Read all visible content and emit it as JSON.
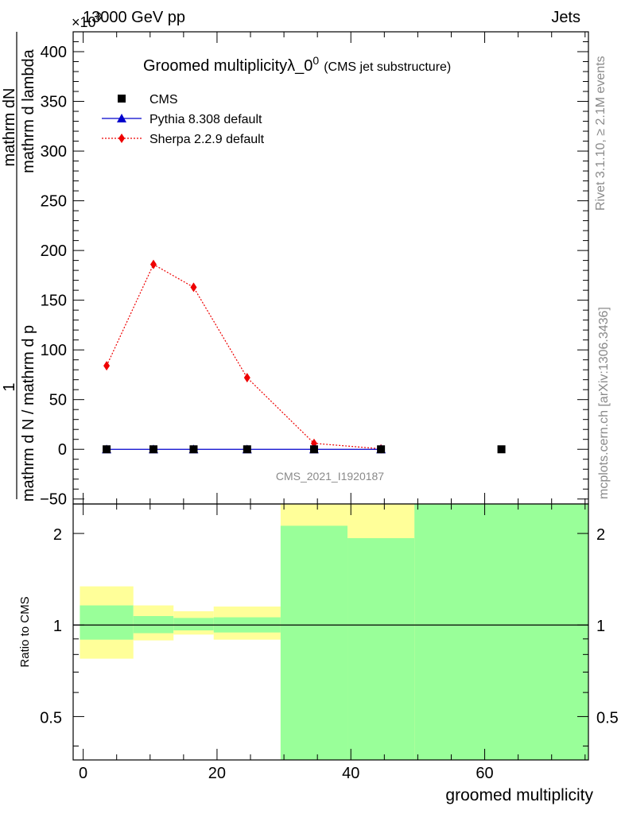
{
  "header": {
    "beam": "13000 GeV pp",
    "process": "Jets",
    "exponent": "×10",
    "exponent_power": "3"
  },
  "side_labels": {
    "rivet": "Rivet 3.1.10, ≥ 2.1M events",
    "mcplots": "mcplots.cern.ch [arXiv:1306.3436]"
  },
  "watermark": "CMS_2021_I1920187",
  "chart_data": [
    {
      "type": "line",
      "title": "Groomed multiplicityλ_0",
      "title_sup": "0",
      "subtitle": "(CMS jet substructure)",
      "xlabel": "groomed multiplicity",
      "ylabel_num": "1",
      "ylabel_num2": "mathrm d N / mathrm d p",
      "ylabel_den": "mathrm d N / mathrm d p",
      "ylabel_lines": [
        "mathrm dN",
        "mathrm d p",
        "mathrm d lambda",
        "mathrm d N / mathrm d p",
        "mathrm d N"
      ],
      "ylim": [
        -55,
        420
      ],
      "xlim": [
        -1.5,
        75.5
      ],
      "grid": false,
      "legend_position": "top-left",
      "y_ticks": [
        -50,
        0,
        50,
        100,
        150,
        200,
        250,
        300,
        350,
        400
      ],
      "y_tick_labels": [
        "−50",
        "0",
        "50",
        "100",
        "150",
        "200",
        "250",
        "300",
        "350",
        "400"
      ],
      "series": [
        {
          "name": "CMS",
          "color": "#000000",
          "marker": "square",
          "x": [
            3.5,
            10.5,
            16.5,
            24.5,
            34.5,
            44.5,
            62.5
          ],
          "y": [
            0,
            0,
            0,
            0,
            0,
            0,
            0
          ]
        },
        {
          "name": "Pythia 8.308 default",
          "color": "#0000cc",
          "marker": "triangle",
          "line": "solid",
          "x": [
            3.5,
            10.5,
            16.5,
            24.5,
            34.5,
            44.5
          ],
          "y": [
            0,
            0,
            0,
            0,
            0,
            0
          ]
        },
        {
          "name": "Sherpa 2.2.9 default",
          "color": "#ee0000",
          "marker": "diamond",
          "line": "dotted",
          "x": [
            3.5,
            10.5,
            16.5,
            24.5,
            34.5,
            44.5
          ],
          "y": [
            84,
            186,
            163,
            72,
            6,
            0.5
          ]
        }
      ]
    },
    {
      "type": "area",
      "ylabel": "Ratio to CMS",
      "xlabel": "groomed multiplicity",
      "scale": "log",
      "ylim": [
        0.36,
        2.5
      ],
      "xlim": [
        -1.5,
        75.5
      ],
      "x_ticks": [
        0,
        20,
        40,
        60
      ],
      "x_tick_labels": [
        "0",
        "20",
        "40",
        "60"
      ],
      "y_ticks": [
        0.5,
        1,
        2
      ],
      "y_tick_labels": [
        "0.5",
        "1",
        "2"
      ],
      "reference_line": 1,
      "colors": {
        "inner": "#99ff99",
        "outer": "#ffff99"
      },
      "bands": [
        {
          "x_low": -0.5,
          "x_high": 7.5,
          "inner": [
            0.895,
            1.16
          ],
          "outer": [
            0.775,
            1.34
          ]
        },
        {
          "x_low": 7.5,
          "x_high": 13.5,
          "inner": [
            0.94,
            1.07
          ],
          "outer": [
            0.89,
            1.16
          ]
        },
        {
          "x_low": 13.5,
          "x_high": 19.5,
          "inner": [
            0.96,
            1.055
          ],
          "outer": [
            0.93,
            1.11
          ]
        },
        {
          "x_low": 19.5,
          "x_high": 29.5,
          "inner": [
            0.945,
            1.06
          ],
          "outer": [
            0.895,
            1.15
          ]
        },
        {
          "x_low": 29.5,
          "x_high": 39.5,
          "inner": [
            0.3,
            2.12
          ],
          "outer": [
            0.3,
            2.6
          ]
        },
        {
          "x_low": 39.5,
          "x_high": 49.5,
          "inner": [
            0.3,
            1.93
          ],
          "outer": [
            0.3,
            2.6
          ]
        },
        {
          "x_low": 49.5,
          "x_high": 75.5,
          "inner": [
            0.3,
            2.6
          ],
          "outer": [
            0.3,
            2.6
          ]
        }
      ]
    }
  ]
}
